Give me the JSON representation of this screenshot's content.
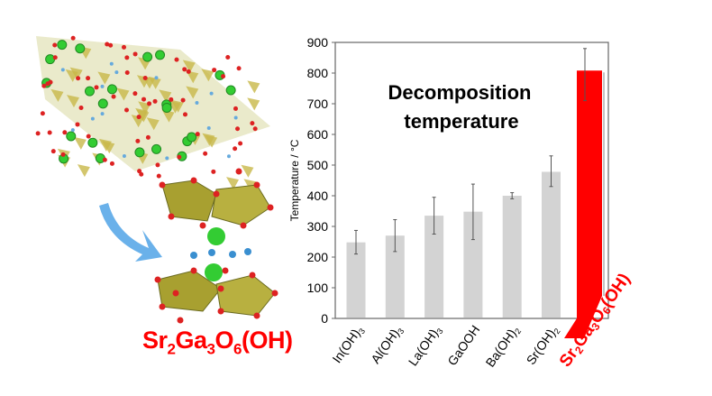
{
  "illustration": {
    "compound_label_parts": [
      "Sr",
      "2",
      "Ga",
      "3",
      "O",
      "6",
      "(OH)"
    ]
  },
  "colors": {
    "highlight": "#ff0000",
    "bar": "#d3d3d3",
    "error_bar": "#555555"
  },
  "chart_data": {
    "type": "bar",
    "title": "Decomposition temperature",
    "title_lines": [
      "Decomposition",
      "temperature"
    ],
    "xlabel": "",
    "ylabel": "Temperature / °C",
    "ylim": [
      0,
      900
    ],
    "yticks": [
      0,
      100,
      200,
      300,
      400,
      500,
      600,
      700,
      800,
      900
    ],
    "grid": false,
    "categories": [
      "In(OH)3",
      "Al(OH)3",
      "La(OH)3",
      "GaOOH",
      "Ba(OH)2",
      "Sr(OH)2",
      "Sr2Ga3O6(OH)"
    ],
    "category_labels": [
      [
        [
          "In(OH)",
          ""
        ],
        [
          "3",
          "sub"
        ]
      ],
      [
        [
          "Al(OH)",
          ""
        ],
        [
          "3",
          "sub"
        ]
      ],
      [
        [
          "La(OH)",
          ""
        ],
        [
          "3",
          "sub"
        ]
      ],
      [
        [
          "GaOOH",
          ""
        ]
      ],
      [
        [
          "Ba(OH)",
          ""
        ],
        [
          "2",
          "sub"
        ]
      ],
      [
        [
          "Sr(OH)",
          ""
        ],
        [
          "2",
          "sub"
        ]
      ],
      [
        [
          "Sr",
          ""
        ],
        [
          "2",
          "sub"
        ],
        [
          "Ga",
          ""
        ],
        [
          "3",
          "sub"
        ],
        [
          "O",
          ""
        ],
        [
          "6",
          "sub"
        ],
        [
          "(OH)",
          ""
        ]
      ]
    ],
    "values": [
      248,
      270,
      335,
      348,
      400,
      478,
      808
    ],
    "error_low": [
      210,
      218,
      275,
      257,
      390,
      430,
      710
    ],
    "error_high": [
      287,
      322,
      395,
      438,
      410,
      530,
      880
    ],
    "highlighted": "Sr2Ga3O6(OH)"
  }
}
